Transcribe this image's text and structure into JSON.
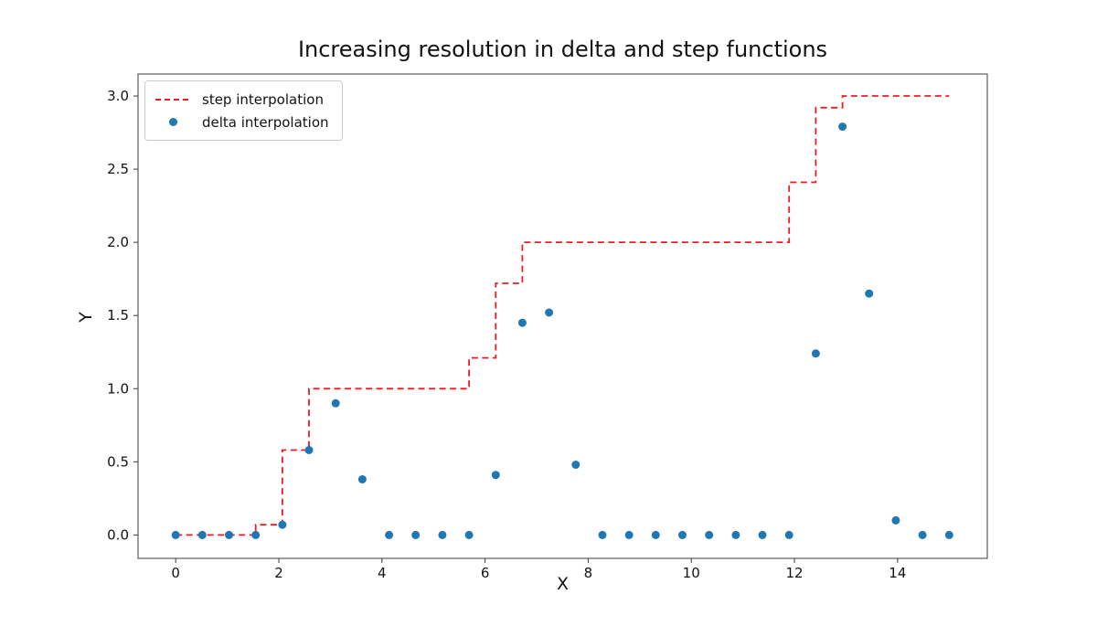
{
  "figure": {
    "background": "#ffffff",
    "text_color": "#121212",
    "spine_color": "#3c3c3c"
  },
  "chart_data": {
    "type": "scatter+step",
    "title": "Increasing resolution in delta and step functions",
    "xlabel": "X",
    "ylabel": "Y",
    "xlim": [
      -0.73,
      15.74
    ],
    "ylim": [
      -0.16,
      3.15
    ],
    "grid": false,
    "legend_position": "upper left",
    "xtick_values": [
      0,
      2,
      4,
      6,
      8,
      10,
      12,
      14
    ],
    "xtick_labels": [
      "0",
      "2",
      "4",
      "6",
      "8",
      "10",
      "12",
      "14"
    ],
    "ytick_values": [
      0,
      0.5,
      1,
      1.5,
      2,
      2.5,
      3
    ],
    "ytick_labels": [
      "0.0",
      "0.5",
      "1.0",
      "1.5",
      "2.0",
      "2.5",
      "3.0"
    ],
    "series": [
      {
        "name": "step interpolation",
        "type": "step",
        "linestyle": "dashed",
        "color": "#ed1c24",
        "points": [
          [
            0.0,
            0.0
          ],
          [
            1.552,
            0.0
          ],
          [
            1.552,
            0.07
          ],
          [
            2.069,
            0.07
          ],
          [
            2.069,
            0.58
          ],
          [
            2.586,
            0.58
          ],
          [
            2.586,
            1.0
          ],
          [
            5.69,
            1.0
          ],
          [
            5.69,
            1.21
          ],
          [
            6.207,
            1.21
          ],
          [
            6.207,
            1.72
          ],
          [
            6.724,
            1.72
          ],
          [
            6.724,
            2.0
          ],
          [
            11.897,
            2.0
          ],
          [
            11.897,
            2.41
          ],
          [
            12.414,
            2.41
          ],
          [
            12.414,
            2.92
          ],
          [
            12.931,
            2.92
          ],
          [
            12.931,
            3.0
          ],
          [
            15.0,
            3.0
          ]
        ]
      },
      {
        "name": "delta interpolation",
        "type": "scatter",
        "color": "#1f77b4",
        "marker_radius": 4.5,
        "x": [
          0.0,
          0.517,
          1.034,
          1.552,
          2.069,
          2.586,
          3.103,
          3.621,
          4.138,
          4.655,
          5.172,
          5.69,
          6.207,
          6.724,
          7.241,
          7.759,
          8.276,
          8.793,
          9.31,
          9.828,
          10.345,
          10.862,
          11.379,
          11.897,
          12.414,
          12.931,
          13.448,
          13.966,
          14.483,
          15.0
        ],
        "y": [
          0.0,
          0.0,
          0.0,
          0.0,
          0.07,
          0.58,
          0.9,
          0.38,
          0.0,
          0.0,
          0.0,
          0.0,
          0.41,
          1.45,
          1.52,
          0.48,
          0.0,
          0.0,
          0.0,
          0.0,
          0.0,
          0.0,
          0.0,
          0.0,
          1.24,
          2.79,
          1.65,
          0.1,
          0.0,
          0.0
        ]
      }
    ]
  }
}
